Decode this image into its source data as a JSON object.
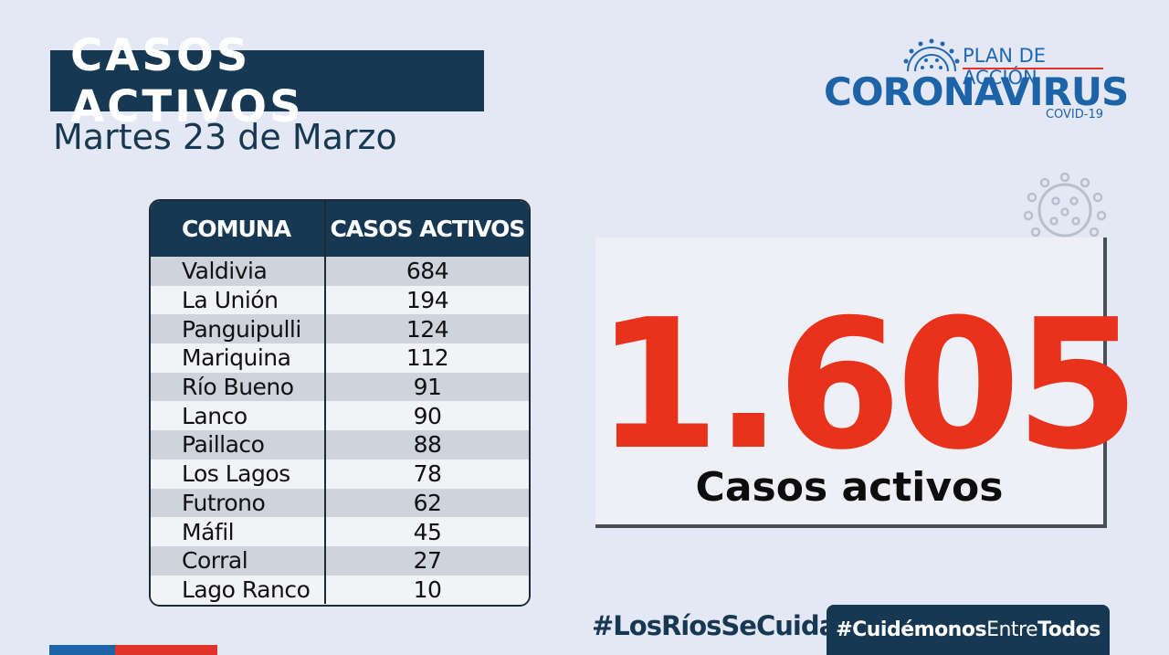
{
  "header": {
    "title": "CASOS ACTIVOS",
    "date": "Martes 23 de Marzo"
  },
  "logo": {
    "plan": "PLAN DE ACCIÓN",
    "name": "CORONAVIRUS",
    "sub": "COVID-19",
    "icon": "virus-icon"
  },
  "table": {
    "headers": [
      "COMUNA",
      "CASOS ACTIVOS"
    ],
    "rows": [
      {
        "comuna": "Valdivia",
        "casos": "684"
      },
      {
        "comuna": "La Unión",
        "casos": "194"
      },
      {
        "comuna": "Panguipulli",
        "casos": "124"
      },
      {
        "comuna": "Mariquina",
        "casos": "112"
      },
      {
        "comuna": "Río Bueno",
        "casos": "91"
      },
      {
        "comuna": "Lanco",
        "casos": "90"
      },
      {
        "comuna": "Paillaco",
        "casos": "88"
      },
      {
        "comuna": "Los Lagos",
        "casos": "78"
      },
      {
        "comuna": "Futrono",
        "casos": "62"
      },
      {
        "comuna": "Máfil",
        "casos": "45"
      },
      {
        "comuna": "Corral",
        "casos": "27"
      },
      {
        "comuna": "Lago Ranco",
        "casos": "10"
      }
    ]
  },
  "total": {
    "value": "1.605",
    "label": "Casos activos"
  },
  "footer": {
    "hashtag1": "#LosRíosSeCuida",
    "hashtag2_bold1": "#Cuidémonos",
    "hashtag2_regular": "Entre",
    "hashtag2_bold2": "Todos"
  },
  "colors": {
    "navy": "#163852",
    "accent_red": "#e8321c",
    "brand_blue": "#1d63a8",
    "background": "#e4e8f4"
  }
}
